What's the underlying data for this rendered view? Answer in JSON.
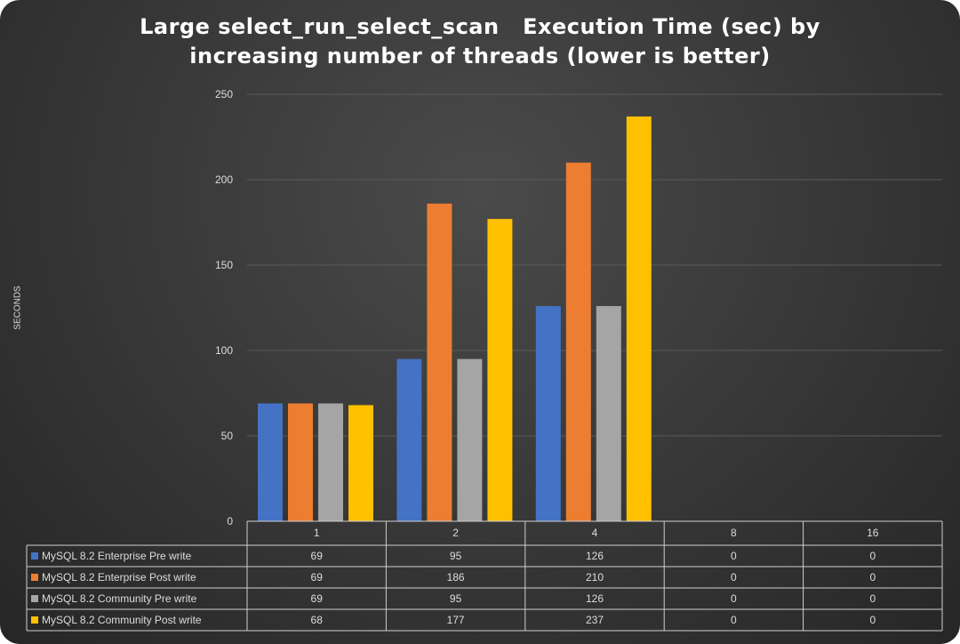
{
  "chart_data": {
    "type": "bar",
    "title_line1": "Large select_run_select_scan   Execution Time (sec) by",
    "title_line2": "increasing number of threads (lower is better)",
    "ylabel": "SECONDS",
    "xlabel": "",
    "ylim": [
      0,
      250
    ],
    "yticks": [
      0,
      50,
      100,
      150,
      200,
      250
    ],
    "grid": true,
    "legend": "data-table-bottom",
    "categories": [
      "1",
      "2",
      "4",
      "8",
      "16"
    ],
    "series": [
      {
        "name": "MySQL 8.2 Enterprise Pre write",
        "color": "#4472c4",
        "values": [
          69,
          95,
          126,
          0,
          0
        ]
      },
      {
        "name": "MySQL 8.2 Enterprise Post write",
        "color": "#ed7d31",
        "values": [
          69,
          186,
          210,
          0,
          0
        ]
      },
      {
        "name": "MySQL 8.2 Community Pre write",
        "color": "#a5a5a5",
        "values": [
          69,
          95,
          126,
          0,
          0
        ]
      },
      {
        "name": "MySQL 8.2 Community Post write",
        "color": "#ffc000",
        "values": [
          68,
          177,
          237,
          0,
          0
        ]
      }
    ]
  }
}
